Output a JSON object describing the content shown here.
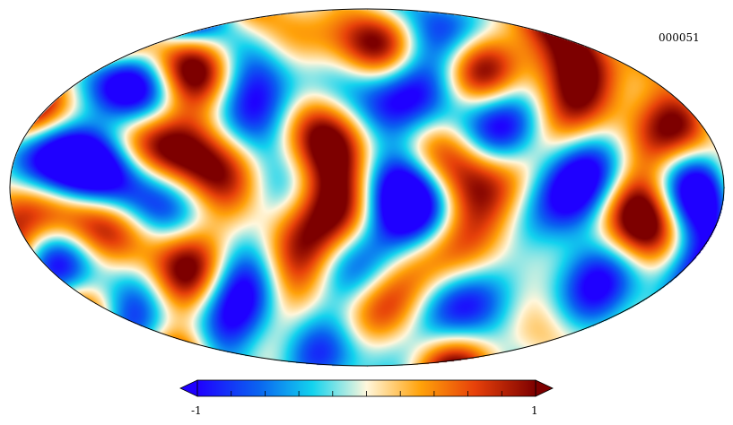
{
  "map": {
    "id_label": "000051",
    "projection": "mollweide",
    "palette": {
      "dark_blue": "#1f00ff",
      "blue": "#0a63f0",
      "cyan": "#13d3ee",
      "pale": "#fff7dc",
      "orange": "#ffa20a",
      "red": "#e7410a",
      "dark_red": "#7d0000"
    }
  },
  "colorbar": {
    "min_label": "-1",
    "max_label": "1",
    "min": -1,
    "max": 1
  }
}
